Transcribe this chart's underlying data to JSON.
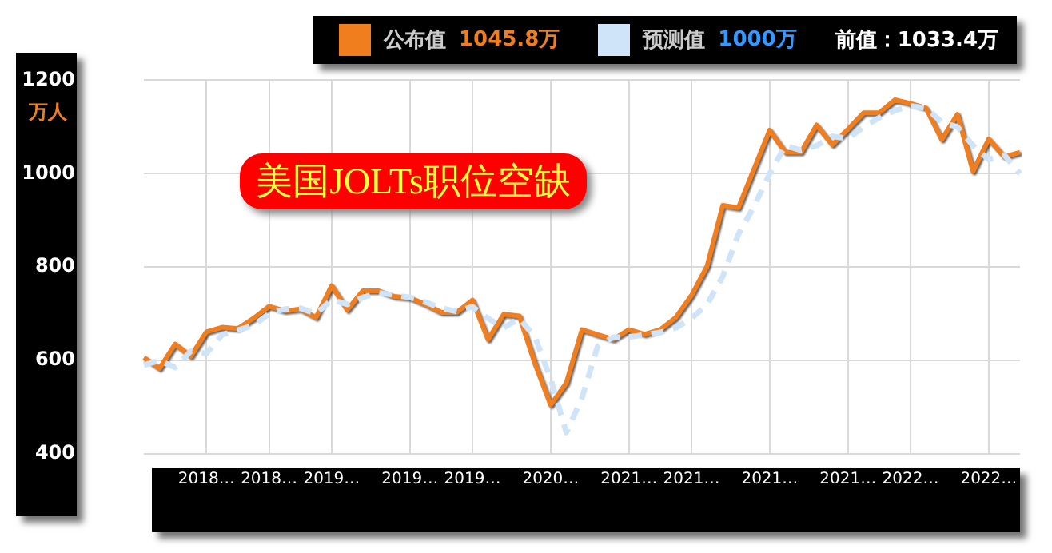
{
  "chart_data": {
    "type": "line",
    "title": "美国JOLTs职位空缺",
    "ylabel": "万人",
    "categories": [
      null,
      null,
      null,
      null,
      "2018…",
      null,
      null,
      null,
      "2018…",
      null,
      null,
      null,
      "2019…",
      null,
      null,
      null,
      null,
      "2019…",
      null,
      null,
      null,
      "2019…",
      null,
      null,
      null,
      null,
      "2020…",
      null,
      null,
      null,
      null,
      "2021…",
      null,
      null,
      null,
      "2021…",
      null,
      null,
      null,
      null,
      "2021…",
      null,
      null,
      null,
      null,
      "2021…",
      null,
      null,
      null,
      "2022…",
      null,
      null,
      null,
      null,
      "2022…",
      null,
      null
    ],
    "series": [
      {
        "name": "公布值",
        "color": "#f07d1e",
        "line_style": "solid",
        "values": [
          606,
          583,
          635,
          609,
          661,
          671,
          668,
          690,
          716,
          706,
          710,
          692,
          760,
          708,
          749,
          749,
          737,
          734,
          720,
          703,
          703,
          729,
          645,
          699,
          695,
          593,
          505,
          552,
          666,
          655,
          645,
          666,
          656,
          666,
          692,
          739,
          802,
          932,
          927,
          1010,
          1093,
          1046,
          1046,
          1104,
          1062,
          1095,
          1130,
          1130,
          1158,
          1150,
          1140,
          1073,
          1127,
          1005,
          1074,
          1036,
          1045.8
        ]
      },
      {
        "name": "预测值",
        "color": "#cfe4f8",
        "line_style": "dashed",
        "values": [
          590,
          600,
          585,
          620,
          615,
          655,
          665,
          675,
          700,
          710,
          712,
          700,
          730,
          720,
          735,
          745,
          740,
          735,
          725,
          712,
          705,
          715,
          690,
          670,
          690,
          650,
          560,
          446,
          520,
          630,
          650,
          650,
          655,
          660,
          670,
          690,
          720,
          780,
          870,
          930,
          1000,
          1060,
          1050,
          1060,
          1080,
          1075,
          1100,
          1120,
          1135,
          1145,
          1140,
          1110,
          1100,
          1060,
          1030,
          1040,
          1000
        ]
      }
    ],
    "annotations": [
      "1045.8万",
      "1000万",
      "前值：1033.4万"
    ],
    "ylim": [
      400,
      1200
    ],
    "yticks": [
      400,
      600,
      800,
      1000,
      1200
    ],
    "grid": true,
    "legend": "top",
    "marker": "none"
  }
}
